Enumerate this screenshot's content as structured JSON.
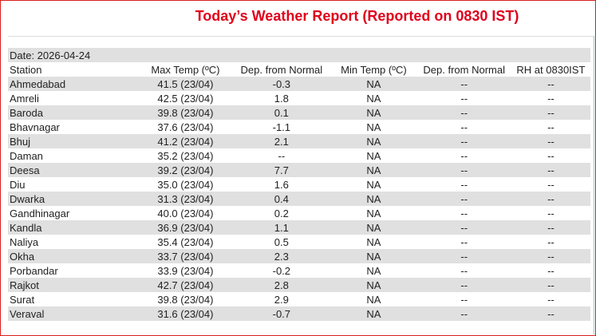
{
  "title": "Today’s Weather Report (Reported on 0830 IST)",
  "date": "Date: 2026-04-24",
  "table": {
    "header": [
      "Station",
      "Max Temp (ºC)",
      "Dep. from Normal",
      "Min Temp (ºC)",
      "Dep. from Normal",
      "RH at 0830IST"
    ],
    "rows": [
      [
        "Ahmedabad",
        "41.5 (23/04)",
        "-0.3",
        "NA",
        "--",
        "--"
      ],
      [
        "Amreli",
        "42.5 (23/04)",
        "1.8",
        "NA",
        "--",
        "--"
      ],
      [
        "Baroda",
        "39.8 (23/04)",
        "0.1",
        "NA",
        "--",
        "--"
      ],
      [
        "Bhavnagar",
        "37.6 (23/04)",
        "-1.1",
        "NA",
        "--",
        "--"
      ],
      [
        "Bhuj",
        "41.2 (23/04)",
        "2.1",
        "NA",
        "--",
        "--"
      ],
      [
        "Daman",
        "35.2 (23/04)",
        "--",
        "NA",
        "--",
        "--"
      ],
      [
        "Deesa",
        "39.2 (23/04)",
        "7.7",
        "NA",
        "--",
        "--"
      ],
      [
        "Diu",
        "35.0 (23/04)",
        "1.6",
        "NA",
        "--",
        "--"
      ],
      [
        "Dwarka",
        "31.3 (23/04)",
        "0.4",
        "NA",
        "--",
        "--"
      ],
      [
        "Gandhinagar",
        "40.0 (23/04)",
        "0.2",
        "NA",
        "--",
        "--"
      ],
      [
        "Kandla",
        "36.9 (23/04)",
        "1.1",
        "NA",
        "--",
        "--"
      ],
      [
        "Naliya",
        "35.4 (23/04)",
        "0.5",
        "NA",
        "--",
        "--"
      ],
      [
        "Okha",
        "33.7 (23/04)",
        "2.3",
        "NA",
        "--",
        "--"
      ],
      [
        "Porbandar",
        "33.9 (23/04)",
        "-0.2",
        "NA",
        "--",
        "--"
      ],
      [
        "Rajkot",
        "42.7 (23/04)",
        "2.8",
        "NA",
        "--",
        "--"
      ],
      [
        "Surat",
        "39.8 (23/04)",
        "2.9",
        "NA",
        "--",
        "--"
      ],
      [
        "Veraval",
        "31.6 (23/04)",
        "-0.7",
        "NA",
        "--",
        "--"
      ]
    ]
  }
}
